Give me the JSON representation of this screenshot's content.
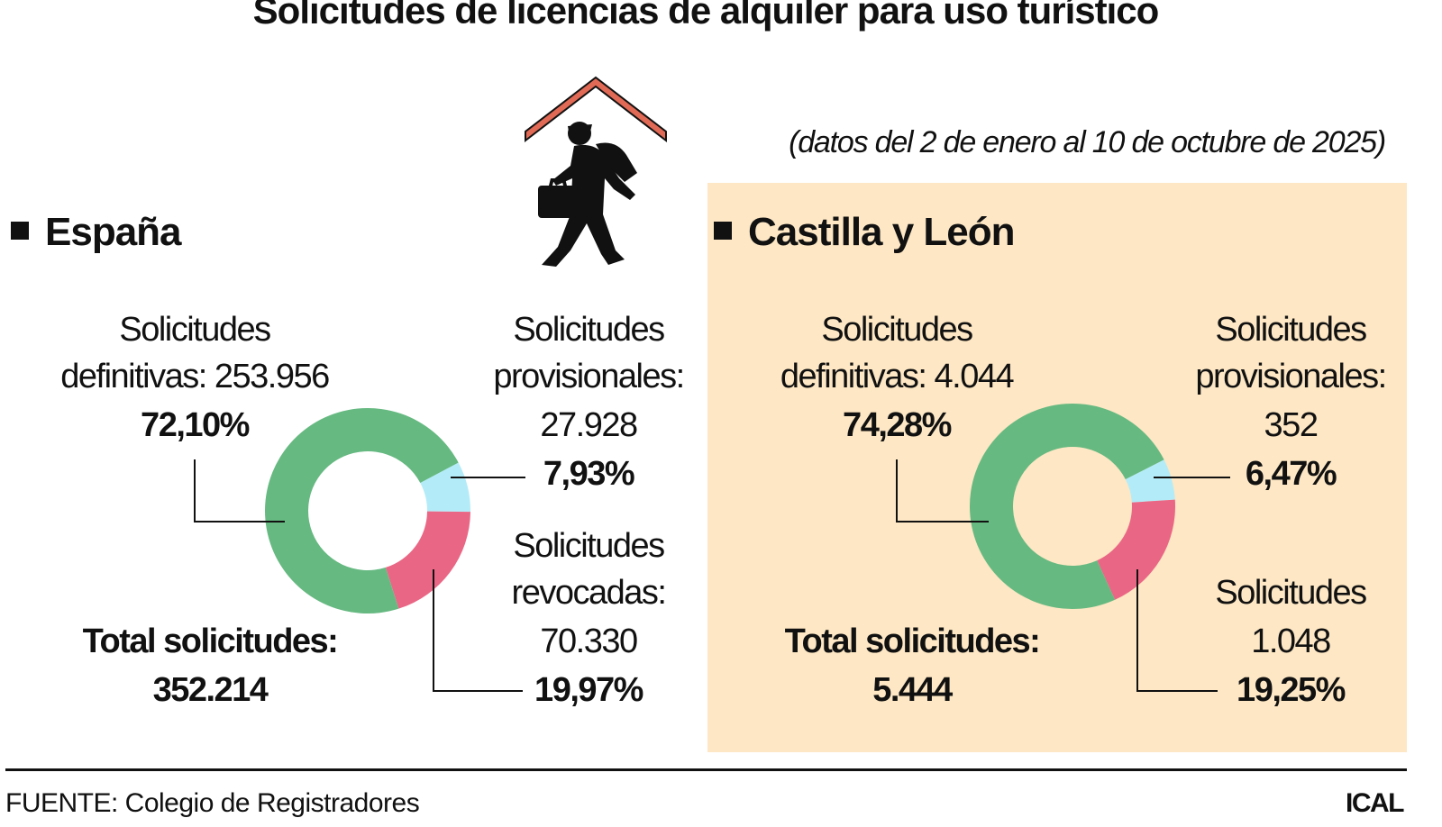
{
  "title": "Solicitudes de licencias de alquiler para uso turístico",
  "subtitle": "(datos del 2 de enero al 10 de octubre de 2025)",
  "source": "FUENTE: Colegio de Registradores",
  "credit": "ICAL",
  "colors": {
    "definitivas": "#66b981",
    "provisionales": "#b3ecf8",
    "revocadas": "#ea6685",
    "panel": "#fde7c4",
    "roof": "#e06a55"
  },
  "icons": [
    "house-roof-icon",
    "walking-traveler-icon"
  ],
  "chart_data": [
    {
      "type": "pie",
      "title": "España",
      "donut": true,
      "slices": [
        {
          "label_lines": [
            "Solicitudes",
            "definitivas: 253.956"
          ],
          "value": 253956,
          "percent": "72,10%"
        },
        {
          "label_lines": [
            "Solicitudes",
            "provisionales:",
            "27.928"
          ],
          "value": 27928,
          "percent": "7,93%"
        },
        {
          "label_lines": [
            "Solicitudes",
            "revocadas:",
            "70.330"
          ],
          "value": 70330,
          "percent": "19,97%"
        }
      ],
      "total_label": "Total solicitudes:",
      "total": "352.214"
    },
    {
      "type": "pie",
      "title": "Castilla y León",
      "donut": true,
      "slices": [
        {
          "label_lines": [
            "Solicitudes",
            "definitivas: 4.044"
          ],
          "value": 4044,
          "percent": "74,28%"
        },
        {
          "label_lines": [
            "Solicitudes",
            "provisionales:",
            "352"
          ],
          "value": 352,
          "percent": "6,47%"
        },
        {
          "label_lines": [
            "Solicitudes",
            "1.048"
          ],
          "value": 1048,
          "percent": "19,25%"
        }
      ],
      "total_label": "Total solicitudes:",
      "total": "5.444"
    }
  ]
}
